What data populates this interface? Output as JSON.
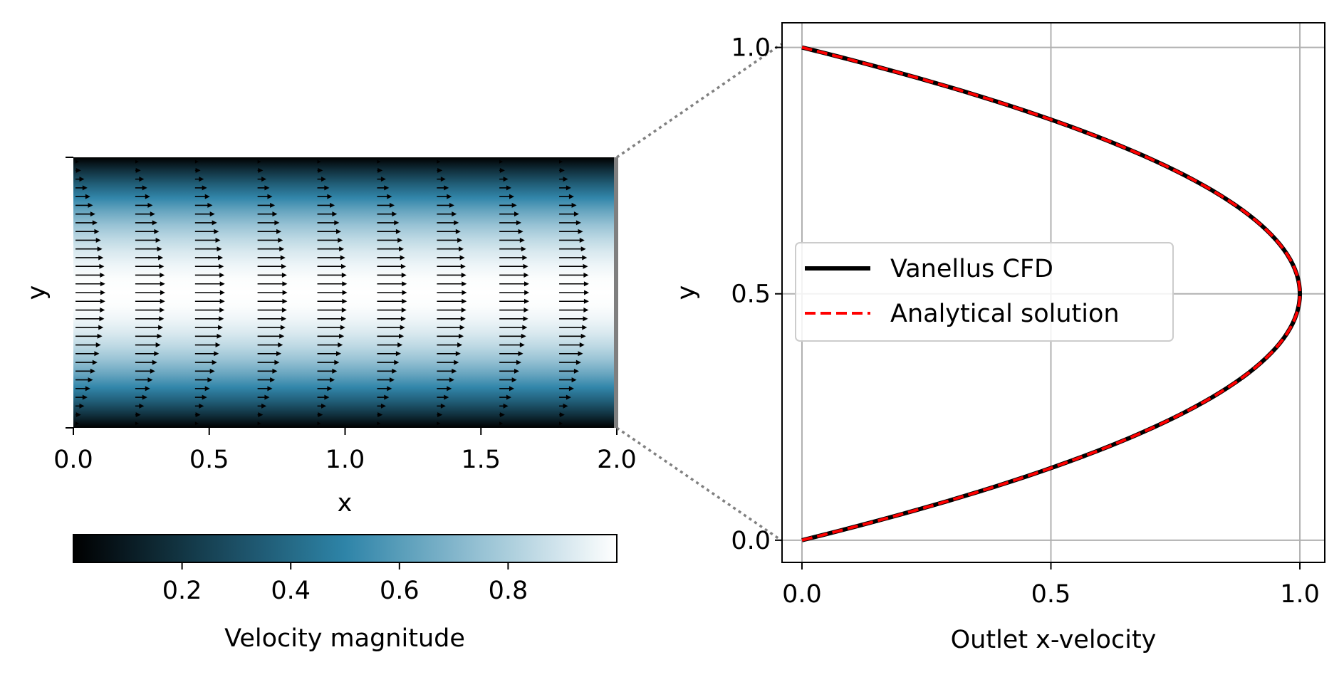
{
  "chart_data": [
    {
      "type": "heatmap",
      "subtype": "velocity-field-with-quiver",
      "xlabel": "x",
      "ylabel": "y",
      "xlim": [
        0,
        2
      ],
      "ylim": [
        0,
        1
      ],
      "xticks": [
        0.0,
        0.5,
        1.0,
        1.5,
        2.0
      ],
      "xtick_labels": [
        "0.0",
        "0.5",
        "1.0",
        "1.5",
        "2.0"
      ],
      "field": "parabolic x-velocity profile u(y) = 4 y (1 - y), uniform in x",
      "quiver_x": [
        0.0,
        0.22,
        0.44,
        0.67,
        0.89,
        1.11,
        1.33,
        1.56,
        1.78
      ],
      "quiver_rows": 31,
      "outlet_highlight": "gray",
      "colorbar": {
        "label": "Velocity magnitude",
        "range": [
          0,
          1
        ],
        "ticks": [
          0.2,
          0.4,
          0.6,
          0.8
        ],
        "tick_labels": [
          "0.2",
          "0.4",
          "0.6",
          "0.8"
        ],
        "orientation": "horizontal",
        "colors": [
          "#000000",
          "#2e84a8",
          "#ffffff"
        ]
      }
    },
    {
      "type": "line",
      "xlabel": "Outlet x-velocity",
      "ylabel": "y",
      "xlim": [
        -0.04,
        1.05
      ],
      "ylim": [
        -0.045,
        1.05
      ],
      "xticks": [
        0.0,
        0.5,
        1.0
      ],
      "xtick_labels": [
        "0.0",
        "0.5",
        "1.0"
      ],
      "yticks": [
        0.0,
        0.5,
        1.0
      ],
      "ytick_labels": [
        "0.0",
        "0.5",
        "1.0"
      ],
      "grid": true,
      "legend": "center-left",
      "series": [
        {
          "name": "Vanellus CFD",
          "color": "#000000",
          "style": "solid",
          "y": [
            0.0,
            0.05,
            0.1,
            0.15,
            0.2,
            0.25,
            0.3,
            0.35,
            0.4,
            0.45,
            0.5,
            0.55,
            0.6,
            0.65,
            0.7,
            0.75,
            0.8,
            0.85,
            0.9,
            0.95,
            1.0
          ],
          "x": [
            0.0,
            0.19,
            0.36,
            0.51,
            0.64,
            0.75,
            0.84,
            0.91,
            0.96,
            0.99,
            1.0,
            0.99,
            0.96,
            0.91,
            0.84,
            0.75,
            0.64,
            0.51,
            0.36,
            0.19,
            0.0
          ]
        },
        {
          "name": "Analytical solution",
          "color": "#ff0000",
          "style": "dashed",
          "y": [
            0.0,
            0.05,
            0.1,
            0.15,
            0.2,
            0.25,
            0.3,
            0.35,
            0.4,
            0.45,
            0.5,
            0.55,
            0.6,
            0.65,
            0.7,
            0.75,
            0.8,
            0.85,
            0.9,
            0.95,
            1.0
          ],
          "x": [
            0.0,
            0.19,
            0.36,
            0.51,
            0.64,
            0.75,
            0.84,
            0.91,
            0.96,
            0.99,
            1.0,
            0.99,
            0.96,
            0.91,
            0.84,
            0.75,
            0.64,
            0.51,
            0.36,
            0.19,
            0.0
          ]
        }
      ]
    }
  ]
}
